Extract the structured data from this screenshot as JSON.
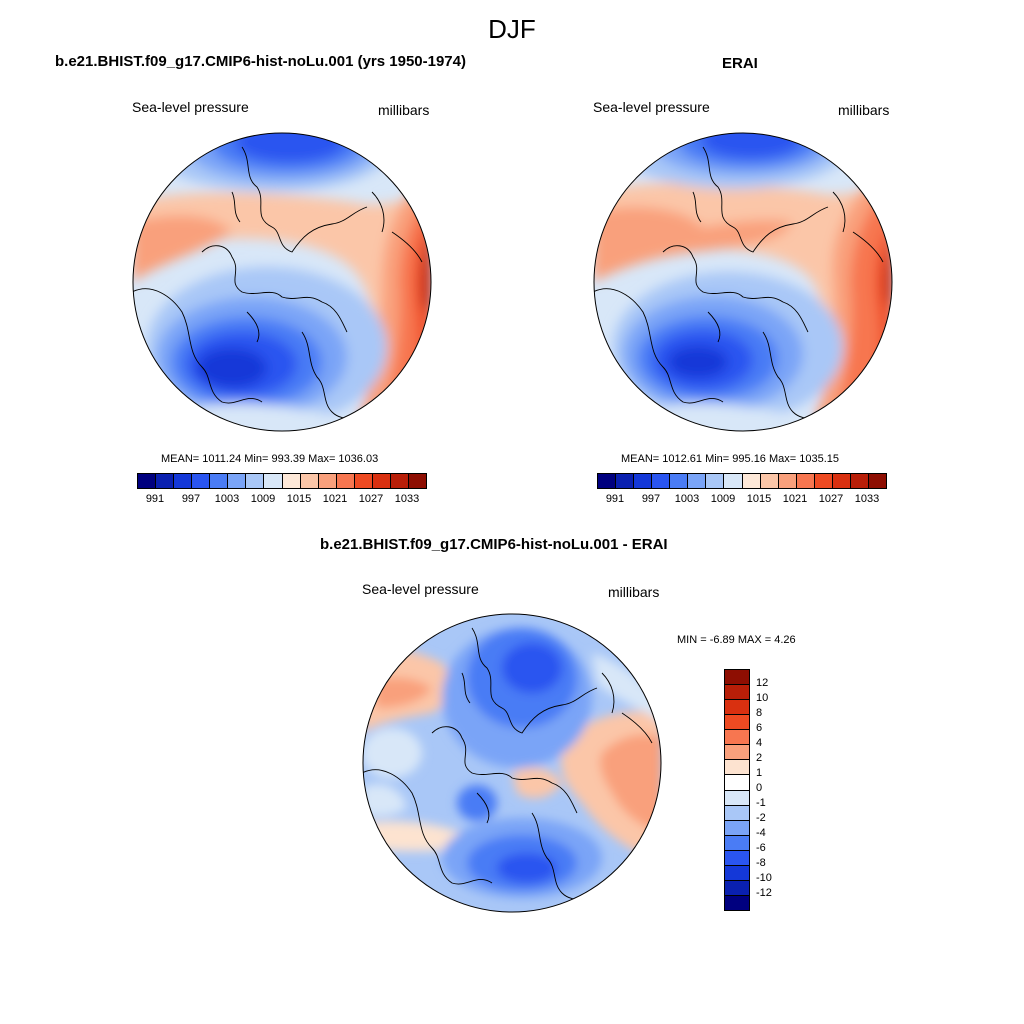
{
  "figure_title": "DJF",
  "panels": {
    "model": {
      "title": "b.e21.BHIST.f09_g17.CMIP6-hist-noLu.001 (yrs 1950-1974)",
      "variable": "Sea-level pressure",
      "units": "millibars",
      "stats": "MEAN= 1011.24  Min= 993.39  Max= 1036.03"
    },
    "obs": {
      "title": "ERAI",
      "variable": "Sea-level pressure",
      "units": "millibars",
      "stats": "MEAN= 1012.61  Min= 995.16  Max= 1035.15"
    },
    "diff": {
      "title": "b.e21.BHIST.f09_g17.CMIP6-hist-noLu.001 - ERAI",
      "variable": "Sea-level pressure",
      "units": "millibars",
      "stats": "MIN =  -6.89 MAX =   4.26"
    }
  },
  "colorbar_main": {
    "colors": [
      "#00007f",
      "#0a20b0",
      "#1438d8",
      "#2a55f0",
      "#4a7cf5",
      "#7aa4f7",
      "#a9c7f7",
      "#d8e7f8",
      "#fde8d8",
      "#fbc6a8",
      "#f9a07c",
      "#f77650",
      "#ee4a22",
      "#d93010",
      "#b81e08",
      "#8e0e02"
    ],
    "labels": [
      "991",
      "997",
      "1003",
      "1009",
      "1015",
      "1021",
      "1027",
      "1033"
    ]
  },
  "colorbar_diff": {
    "colors": [
      "#8e0e02",
      "#b81e08",
      "#d93010",
      "#ee4a22",
      "#f77650",
      "#f9a07c",
      "#fde3d0",
      "#ffffff",
      "#d8e7f8",
      "#a9c7f7",
      "#7aa4f7",
      "#4a7cf5",
      "#2a55f0",
      "#1438d8",
      "#0a20b0",
      "#00007f"
    ],
    "labels": [
      "12",
      "10",
      "8",
      "6",
      "4",
      "2",
      "1",
      "0",
      "-1",
      "-2",
      "-4",
      "-6",
      "-8",
      "-10",
      "-12"
    ]
  }
}
